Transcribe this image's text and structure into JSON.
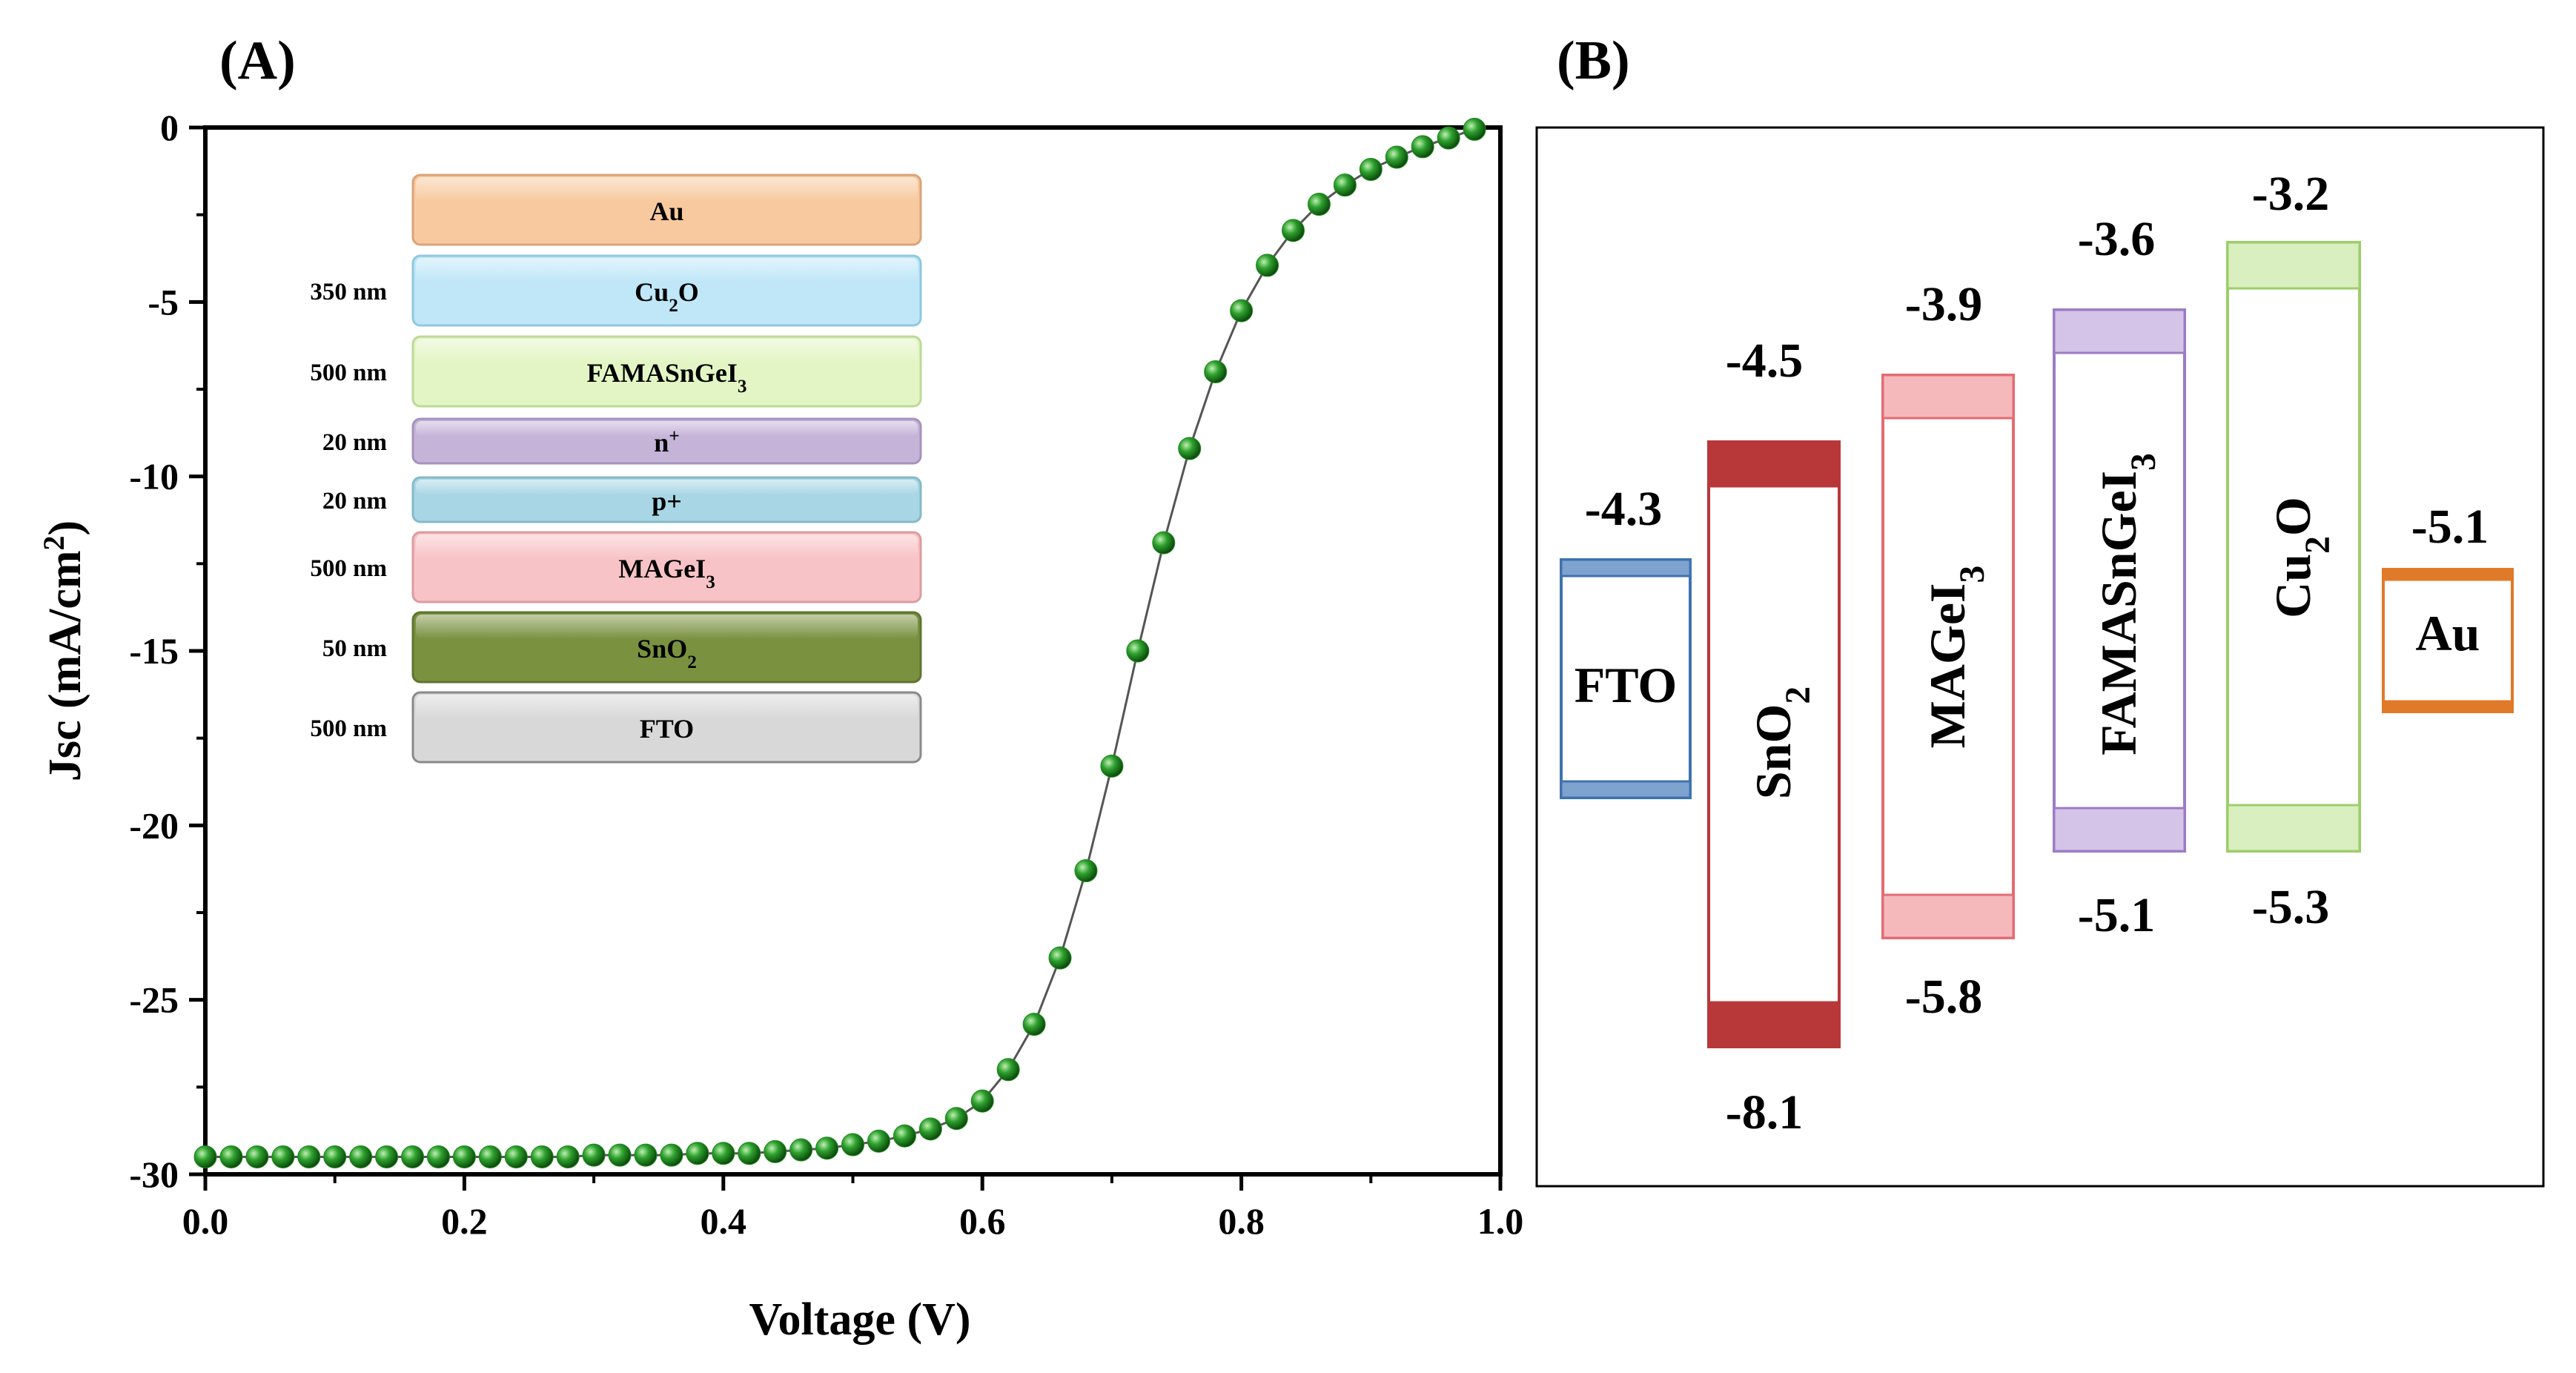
{
  "panel_a": {
    "label": "(A)"
  },
  "panel_b": {
    "label": "(B)"
  },
  "chart_data": [
    {
      "type": "scatter",
      "title": "",
      "xlabel": "Voltage (V)",
      "ylabel_main": "Jsc (mA/cm",
      "ylabel_sup": "2",
      "ylabel_end": ")",
      "xlim": [
        0,
        1.0
      ],
      "ylim": [
        -30,
        0
      ],
      "xticks": [
        "0.0",
        "0.2",
        "0.4",
        "0.6",
        "0.8",
        "1.0"
      ],
      "yticks": [
        "0",
        "-5",
        "-10",
        "-15",
        "-20",
        "-25",
        "-30"
      ],
      "marker_color": "#1f8a1f",
      "line_color": "#555555",
      "x": [
        0.0,
        0.02,
        0.04,
        0.06,
        0.08,
        0.1,
        0.12,
        0.14,
        0.16,
        0.18,
        0.2,
        0.22,
        0.24,
        0.26,
        0.28,
        0.3,
        0.32,
        0.34,
        0.36,
        0.38,
        0.4,
        0.42,
        0.44,
        0.46,
        0.48,
        0.5,
        0.52,
        0.54,
        0.56,
        0.58,
        0.6,
        0.62,
        0.64,
        0.66,
        0.68,
        0.7,
        0.72,
        0.74,
        0.76,
        0.78,
        0.8,
        0.82,
        0.84,
        0.86,
        0.88,
        0.9,
        0.92,
        0.94,
        0.96,
        0.98
      ],
      "y": [
        -29.5,
        -29.5,
        -29.5,
        -29.5,
        -29.5,
        -29.5,
        -29.5,
        -29.5,
        -29.5,
        -29.5,
        -29.5,
        -29.5,
        -29.5,
        -29.5,
        -29.5,
        -29.45,
        -29.45,
        -29.45,
        -29.45,
        -29.4,
        -29.4,
        -29.4,
        -29.35,
        -29.3,
        -29.25,
        -29.15,
        -29.05,
        -28.9,
        -28.7,
        -28.4,
        -27.9,
        -27.0,
        -25.7,
        -23.8,
        -21.3,
        -18.3,
        -15.0,
        -11.9,
        -9.2,
        -7.0,
        -5.25,
        -3.95,
        -2.95,
        -2.2,
        -1.65,
        -1.2,
        -0.85,
        -0.55,
        -0.3,
        -0.05
      ],
      "inset_layers": [
        {
          "name": "Au",
          "sub": "",
          "sup": "",
          "tail": "",
          "thickness": "",
          "fill": "#f8c99e",
          "stroke": "#d9a47a"
        },
        {
          "name": "Cu",
          "sub": "2",
          "sup": "",
          "tail": "O",
          "thickness": "350 nm",
          "fill": "#bfe7f8",
          "stroke": "#8fc8df"
        },
        {
          "name": "FAMASnGeI",
          "sub": "3",
          "sup": "",
          "tail": "",
          "thickness": "500 nm",
          "fill": "#e3f5c4",
          "stroke": "#bcd99a"
        },
        {
          "name": "n",
          "sub": "",
          "sup": "+",
          "tail": "",
          "thickness": "20 nm",
          "fill": "#c5b4d8",
          "stroke": "#a592bd"
        },
        {
          "name": "p+",
          "sub": "",
          "sup": "",
          "tail": "",
          "thickness": "20 nm",
          "fill": "#a8d6e4",
          "stroke": "#86b9c9"
        },
        {
          "name": "MAGeI",
          "sub": "3",
          "sup": "",
          "tail": "",
          "thickness": "500 nm",
          "fill": "#f8c3c6",
          "stroke": "#db9ca0"
        },
        {
          "name": "SnO",
          "sub": "2",
          "sup": "",
          "tail": "",
          "thickness": "50 nm",
          "fill": "#7a9140",
          "stroke": "#5f7530"
        },
        {
          "name": "FTO",
          "sub": "",
          "sup": "",
          "tail": "",
          "thickness": "500 nm",
          "fill": "#d8d8d8",
          "stroke": "#8a8a8a"
        }
      ]
    },
    {
      "type": "energy-band-diagram",
      "title": "",
      "materials": [
        {
          "name": "FTO",
          "sub": "",
          "tail": "",
          "upper_label": "-4.3",
          "lower_label": "",
          "color": "#3f72b0",
          "fill": "#7ea3cf",
          "vertical_text": false
        },
        {
          "name": "SnO",
          "sub": "2",
          "tail": "",
          "upper_label": "-4.5",
          "lower_label": "-8.1",
          "color": "#b8383a",
          "fill": "#b8383a",
          "vertical_text": true
        },
        {
          "name": "MAGeI",
          "sub": "3",
          "tail": "",
          "upper_label": "-3.9",
          "lower_label": "-5.8",
          "color": "#e36c72",
          "fill": "#f5b9bc",
          "vertical_text": true
        },
        {
          "name": "FAMASnGeI",
          "sub": "3",
          "tail": "",
          "upper_label": "-3.6",
          "lower_label": "-5.1",
          "color": "#9b7cc4",
          "fill": "#d4c4e8",
          "vertical_text": true
        },
        {
          "name": "Cu",
          "sub": "2",
          "tail": "O",
          "upper_label": "-3.2",
          "lower_label": "-5.3",
          "color": "#9dce6a",
          "fill": "#d9efbf",
          "vertical_text": true
        },
        {
          "name": "Au",
          "sub": "",
          "tail": "",
          "upper_label": "-5.1",
          "lower_label": "",
          "color": "#e07a28",
          "fill": "#e07a28",
          "vertical_text": false
        }
      ]
    }
  ]
}
